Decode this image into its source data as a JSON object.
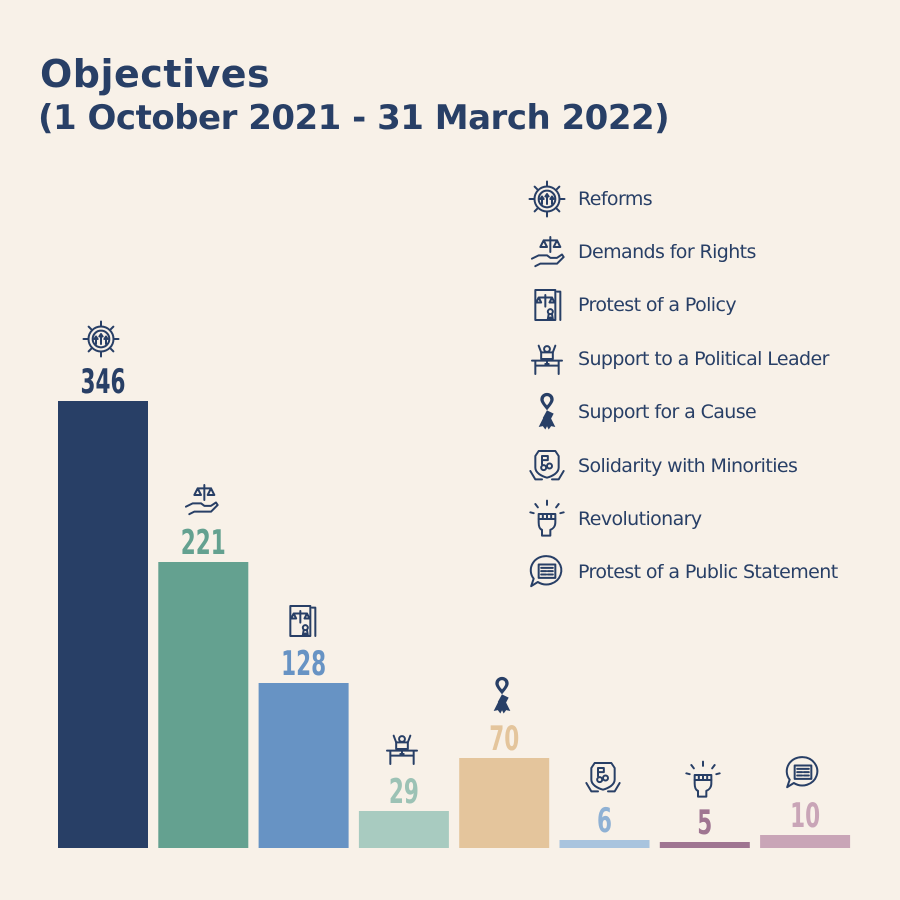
{
  "chart_data": {
    "type": "bar",
    "title": "Objectives",
    "subtitle": "(1 October 2021 - 31 March 2022)",
    "categories": [
      "Reforms",
      "Demands for Rights",
      "Protest of a Policy",
      "Support to a Political Leader",
      "Support for a Cause",
      "Solidarity with Minorities",
      "Revolutionary",
      "Protest of a Public Statement"
    ],
    "values": [
      346,
      221,
      128,
      29,
      70,
      6,
      5,
      10
    ],
    "value_labels": [
      "346",
      "221",
      "128",
      "29",
      "70",
      "6",
      "5",
      "10"
    ],
    "ylim": [
      0,
      346
    ],
    "grid": false,
    "legend": "top-right",
    "colors": [
      "#283f66",
      "#64a190",
      "#6793c4",
      "#a8cbc0",
      "#e4c59c",
      "#a9c4de",
      "#9f7591",
      "#c9a5b7"
    ],
    "icons": [
      "gear-icon",
      "scale-hand-icon",
      "document-scale-icon",
      "podium-icon",
      "ribbon-icon",
      "shield-hands-icon",
      "fist-icon",
      "speech-bubble-icon"
    ]
  }
}
